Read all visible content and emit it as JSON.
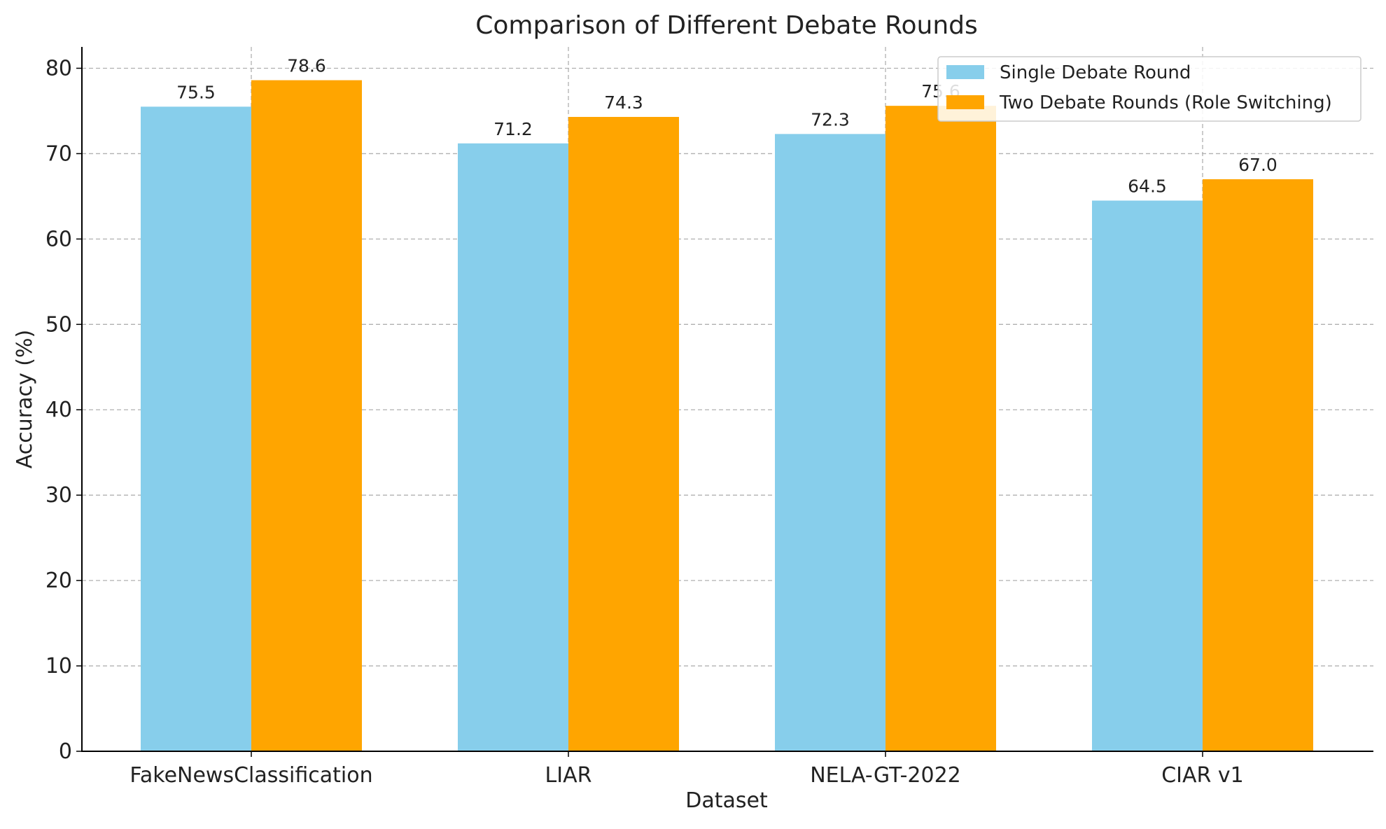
{
  "chart_data": {
    "type": "bar",
    "title": "Comparison of Different Debate Rounds",
    "xlabel": "Dataset",
    "ylabel": "Accuracy (%)",
    "categories": [
      "FakeNewsClassification",
      "LIAR",
      "NELA-GT-2022",
      "CIAR v1"
    ],
    "series": [
      {
        "name": "Single Debate Round",
        "values": [
          75.5,
          71.2,
          72.3,
          64.5
        ],
        "color": "#87CEEB"
      },
      {
        "name": "Two Debate Rounds (Role Switching)",
        "values": [
          78.6,
          74.3,
          75.6,
          67.0
        ],
        "color": "#FFA500"
      }
    ],
    "value_labels": [
      [
        "75.5",
        "71.2",
        "72.3",
        "64.5"
      ],
      [
        "78.6",
        "74.3",
        "75.6",
        "67.0"
      ]
    ],
    "ylim": [
      0,
      82.5
    ],
    "yticks": [
      0,
      10,
      20,
      30,
      40,
      50,
      60,
      70,
      80
    ],
    "grid": true,
    "legend_position": "top-right"
  }
}
